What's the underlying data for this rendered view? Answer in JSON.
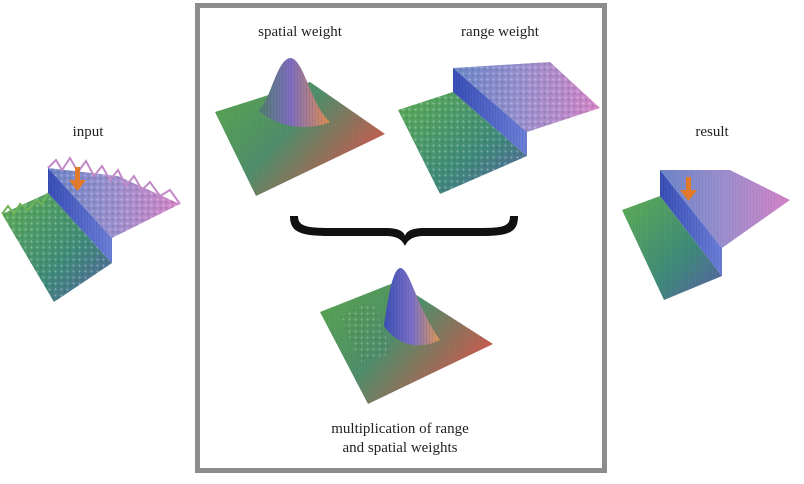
{
  "labels": {
    "input": "input",
    "spatial_weight": "spatial weight",
    "range_weight": "range weight",
    "result": "result",
    "product_line1": "multiplication of range",
    "product_line2": "and spatial weights"
  },
  "colors": {
    "frame": "#8c8c8c",
    "arrow": "#e07a2a",
    "brace": "#111111",
    "surface_green": "#3d8f4a",
    "surface_blue": "#5a6fd0",
    "surface_magenta": "#c06ab8",
    "surface_orange": "#d9824e"
  }
}
